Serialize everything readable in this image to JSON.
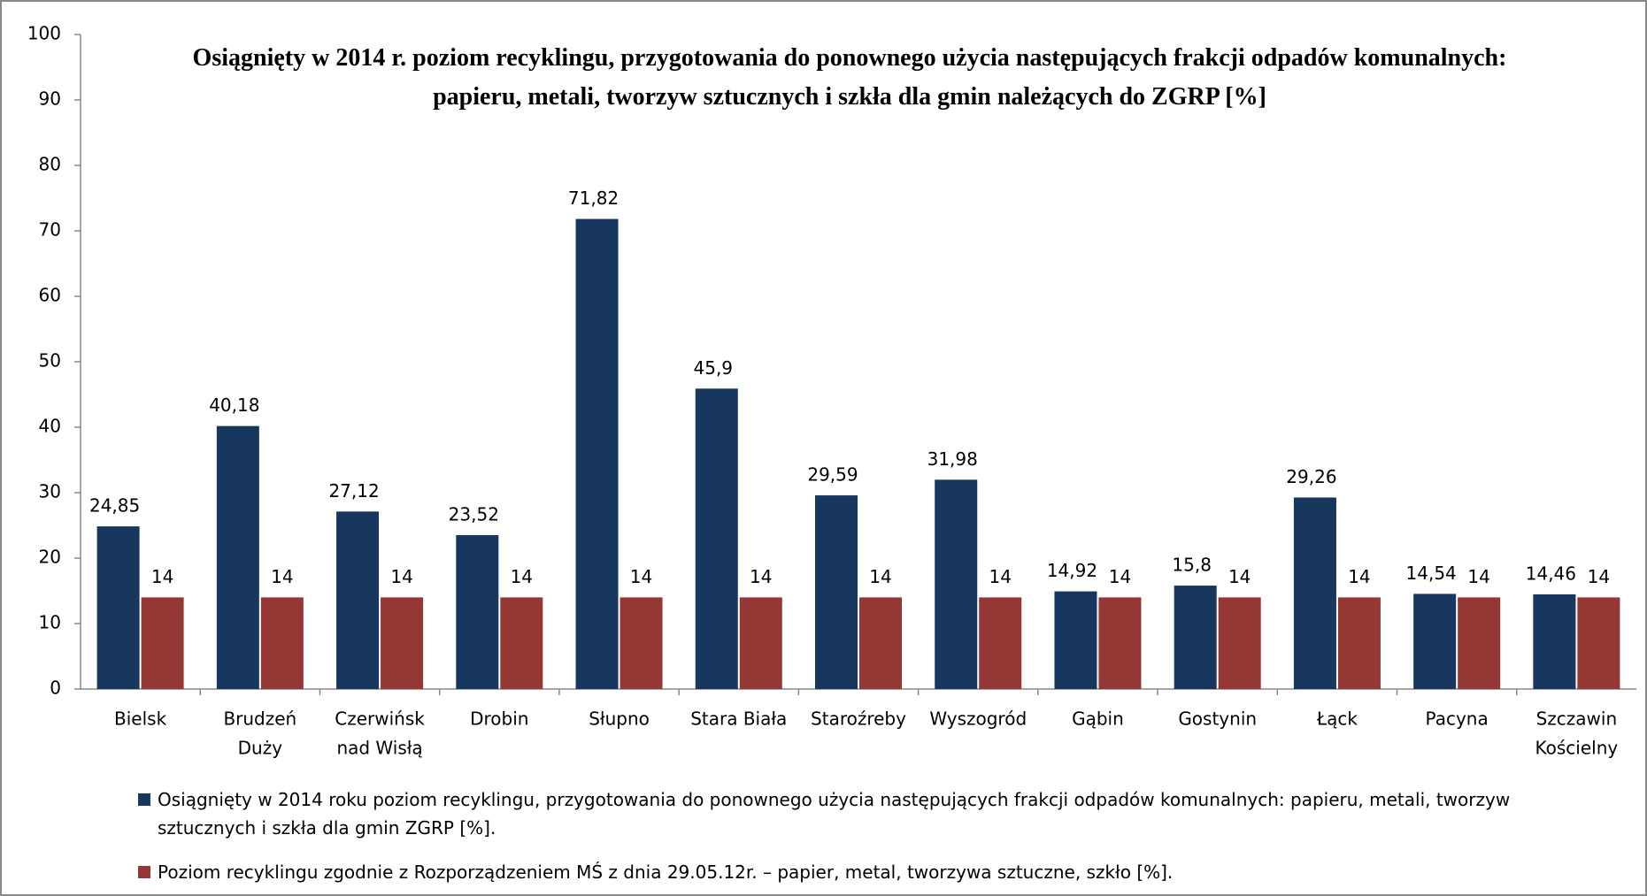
{
  "chart_data": {
    "type": "bar",
    "title": "Osiągnięty w 2014 r. poziom recyklingu, przygotowania do ponownego użycia następujących frakcji odpadów komunalnych: papieru, metali, tworzyw sztucznych i szkła dla gmin należących do ZGRP [%]",
    "categories": [
      [
        "Bielsk"
      ],
      [
        "Brudzeń",
        "Duży"
      ],
      [
        "Czerwińsk",
        "nad Wisłą"
      ],
      [
        "Drobin"
      ],
      [
        "Słupno"
      ],
      [
        "Stara Biała"
      ],
      [
        "Staroźreby"
      ],
      [
        "Wyszogród"
      ],
      [
        "Gąbin"
      ],
      [
        "Gostynin"
      ],
      [
        "Łąck"
      ],
      [
        "Pacyna"
      ],
      [
        "Szczawin",
        "Kościelny"
      ]
    ],
    "series": [
      {
        "name": "Osiągnięty w 2014 roku poziom recyklingu, przygotowania do ponownego użycia następujących frakcji odpadów komunalnych: papieru, metali, tworzyw sztucznych i szkła dla gmin ZGRP [%].",
        "color": "#17375e",
        "values": [
          24.85,
          40.18,
          27.12,
          23.52,
          71.82,
          45.9,
          29.59,
          31.98,
          14.92,
          15.8,
          29.26,
          14.54,
          14.46
        ],
        "value_labels": [
          "24,85",
          "40,18",
          "27,12",
          "23,52",
          "71,82",
          "45,9",
          "29,59",
          "31,98",
          "14,92",
          "15,8",
          "29,26",
          "14,54",
          "14,46"
        ]
      },
      {
        "name": "Poziom recyklingu zgodnie z Rozporządzeniem MŚ z dnia 29.05.12r. – papier, metal, tworzywa sztuczne, szkło [%].",
        "color": "#953735",
        "values": [
          14,
          14,
          14,
          14,
          14,
          14,
          14,
          14,
          14,
          14,
          14,
          14,
          14
        ]
      }
    ],
    "ylim": [
      0,
      100
    ],
    "yticks": [
      0,
      10,
      20,
      30,
      40,
      50,
      60,
      70,
      80,
      90,
      100
    ],
    "grid": false,
    "legend": "bottom"
  }
}
